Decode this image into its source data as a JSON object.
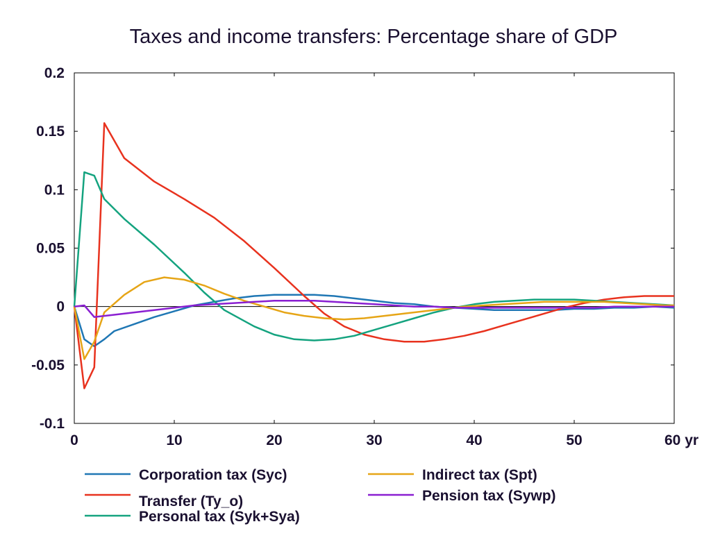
{
  "chart_data": {
    "type": "line",
    "title": "Taxes and income transfers: Percentage share of GDP",
    "xlabel": "",
    "ylabel": "",
    "xlim": [
      0,
      60
    ],
    "ylim": [
      -0.1,
      0.2
    ],
    "x_ticks": [
      {
        "value": 0,
        "label": "0"
      },
      {
        "value": 10,
        "label": "10"
      },
      {
        "value": 20,
        "label": "20"
      },
      {
        "value": 30,
        "label": "30"
      },
      {
        "value": 40,
        "label": "40"
      },
      {
        "value": 50,
        "label": "50"
      },
      {
        "value": 60,
        "label": "60 yr"
      }
    ],
    "y_ticks": [
      {
        "value": 0.2,
        "label": "0.2"
      },
      {
        "value": 0.15,
        "label": "0.15"
      },
      {
        "value": 0.1,
        "label": "0.1"
      },
      {
        "value": 0.05,
        "label": "0.05"
      },
      {
        "value": 0,
        "label": "0"
      },
      {
        "value": -0.05,
        "label": "-0.05"
      },
      {
        "value": -0.1,
        "label": "-0.1"
      }
    ],
    "grid": false,
    "legend_position": "bottom",
    "series": [
      {
        "name": "Corporation tax (Syc)",
        "color": "#1f77b4",
        "points": [
          [
            0,
            0
          ],
          [
            1,
            -0.028
          ],
          [
            2,
            -0.034
          ],
          [
            3,
            -0.028
          ],
          [
            4,
            -0.021
          ],
          [
            6,
            -0.015
          ],
          [
            8,
            -0.009
          ],
          [
            10,
            -0.004
          ],
          [
            12,
            0.001
          ],
          [
            14,
            0.004
          ],
          [
            16,
            0.007
          ],
          [
            18,
            0.009
          ],
          [
            20,
            0.01
          ],
          [
            22,
            0.01
          ],
          [
            24,
            0.01
          ],
          [
            26,
            0.009
          ],
          [
            28,
            0.007
          ],
          [
            30,
            0.005
          ],
          [
            32,
            0.003
          ],
          [
            34,
            0.002
          ],
          [
            36,
            0.0
          ],
          [
            38,
            -0.001
          ],
          [
            40,
            -0.002
          ],
          [
            42,
            -0.003
          ],
          [
            44,
            -0.003
          ],
          [
            46,
            -0.003
          ],
          [
            48,
            -0.003
          ],
          [
            50,
            -0.002
          ],
          [
            52,
            -0.002
          ],
          [
            54,
            -0.001
          ],
          [
            56,
            -0.001
          ],
          [
            58,
            0.0
          ],
          [
            60,
            -0.001
          ]
        ]
      },
      {
        "name": "Transfer (Ty_o)",
        "color": "#e8321e",
        "points": [
          [
            0,
            0
          ],
          [
            1,
            -0.07
          ],
          [
            2,
            -0.052
          ],
          [
            3,
            0.157
          ],
          [
            5,
            0.127
          ],
          [
            8,
            0.107
          ],
          [
            11,
            0.092
          ],
          [
            14,
            0.076
          ],
          [
            17,
            0.056
          ],
          [
            20,
            0.033
          ],
          [
            23,
            0.009
          ],
          [
            25,
            -0.006
          ],
          [
            27,
            -0.017
          ],
          [
            29,
            -0.024
          ],
          [
            31,
            -0.028
          ],
          [
            33,
            -0.03
          ],
          [
            35,
            -0.03
          ],
          [
            37,
            -0.028
          ],
          [
            39,
            -0.025
          ],
          [
            41,
            -0.021
          ],
          [
            43,
            -0.016
          ],
          [
            45,
            -0.011
          ],
          [
            47,
            -0.006
          ],
          [
            49,
            -0.001
          ],
          [
            51,
            0.003
          ],
          [
            53,
            0.006
          ],
          [
            55,
            0.008
          ],
          [
            57,
            0.009
          ],
          [
            59,
            0.009
          ],
          [
            60,
            0.009
          ]
        ]
      },
      {
        "name": "Personal tax (Syk+Sya)",
        "color": "#14a37f",
        "points": [
          [
            0,
            0
          ],
          [
            1,
            0.115
          ],
          [
            2,
            0.112
          ],
          [
            3,
            0.092
          ],
          [
            5,
            0.075
          ],
          [
            8,
            0.053
          ],
          [
            11,
            0.029
          ],
          [
            13,
            0.012
          ],
          [
            15,
            -0.003
          ],
          [
            18,
            -0.017
          ],
          [
            20,
            -0.024
          ],
          [
            22,
            -0.028
          ],
          [
            24,
            -0.029
          ],
          [
            26,
            -0.028
          ],
          [
            28,
            -0.025
          ],
          [
            30,
            -0.02
          ],
          [
            32,
            -0.015
          ],
          [
            34,
            -0.01
          ],
          [
            36,
            -0.005
          ],
          [
            38,
            -0.001
          ],
          [
            40,
            0.002
          ],
          [
            42,
            0.004
          ],
          [
            44,
            0.005
          ],
          [
            46,
            0.006
          ],
          [
            48,
            0.006
          ],
          [
            50,
            0.006
          ],
          [
            52,
            0.005
          ],
          [
            54,
            0.004
          ],
          [
            56,
            0.003
          ],
          [
            58,
            0.002
          ],
          [
            60,
            0.001
          ]
        ]
      },
      {
        "name": "Indirect tax (Spt)",
        "color": "#e6a516",
        "points": [
          [
            0,
            0
          ],
          [
            1,
            -0.045
          ],
          [
            2,
            -0.03
          ],
          [
            3,
            -0.005
          ],
          [
            5,
            0.01
          ],
          [
            7,
            0.021
          ],
          [
            9,
            0.025
          ],
          [
            11,
            0.023
          ],
          [
            13,
            0.018
          ],
          [
            15,
            0.011
          ],
          [
            17,
            0.005
          ],
          [
            19,
            0.0
          ],
          [
            21,
            -0.005
          ],
          [
            23,
            -0.008
          ],
          [
            25,
            -0.01
          ],
          [
            27,
            -0.011
          ],
          [
            29,
            -0.01
          ],
          [
            31,
            -0.008
          ],
          [
            33,
            -0.006
          ],
          [
            35,
            -0.004
          ],
          [
            37,
            -0.002
          ],
          [
            39,
            0.0
          ],
          [
            41,
            0.001
          ],
          [
            43,
            0.002
          ],
          [
            45,
            0.003
          ],
          [
            47,
            0.004
          ],
          [
            49,
            0.004
          ],
          [
            51,
            0.004
          ],
          [
            53,
            0.004
          ],
          [
            55,
            0.003
          ],
          [
            57,
            0.002
          ],
          [
            59,
            0.001
          ],
          [
            60,
            0.001
          ]
        ]
      },
      {
        "name": "Pension tax (Sywp)",
        "color": "#8a1fd1",
        "points": [
          [
            0,
            0
          ],
          [
            1,
            0.001
          ],
          [
            2,
            -0.009
          ],
          [
            4,
            -0.007
          ],
          [
            6,
            -0.005
          ],
          [
            8,
            -0.003
          ],
          [
            10,
            -0.001
          ],
          [
            12,
            0.001
          ],
          [
            14,
            0.002
          ],
          [
            16,
            0.003
          ],
          [
            18,
            0.004
          ],
          [
            20,
            0.005
          ],
          [
            22,
            0.005
          ],
          [
            24,
            0.005
          ],
          [
            26,
            0.004
          ],
          [
            28,
            0.003
          ],
          [
            30,
            0.002
          ],
          [
            32,
            0.001
          ],
          [
            34,
            0.0
          ],
          [
            36,
            0.0
          ],
          [
            38,
            -0.001
          ],
          [
            40,
            -0.001
          ],
          [
            42,
            -0.001
          ],
          [
            44,
            -0.001
          ],
          [
            46,
            -0.001
          ],
          [
            48,
            -0.001
          ],
          [
            50,
            -0.001
          ],
          [
            52,
            -0.001
          ],
          [
            54,
            0.0
          ],
          [
            56,
            0.0
          ],
          [
            58,
            0.0
          ],
          [
            60,
            0.0
          ]
        ]
      }
    ]
  }
}
